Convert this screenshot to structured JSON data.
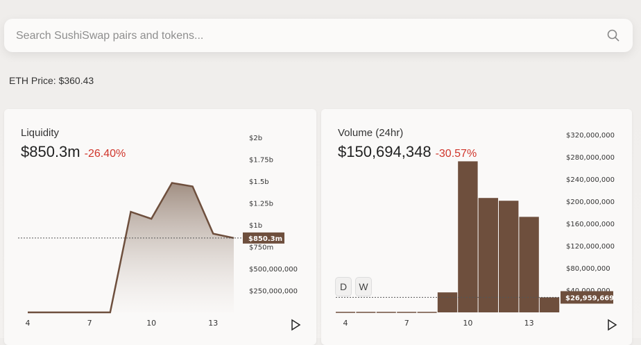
{
  "search": {
    "placeholder": "Search SushiSwap pairs and tokens..."
  },
  "eth_price": "ETH Price: $360.43",
  "liquidity": {
    "title": "Liquidity",
    "value": "$850.3m",
    "change": "-26.40%"
  },
  "volume": {
    "title": "Volume (24hr)",
    "value": "$150,694,348",
    "change": "-30.57%",
    "buttons": [
      "D",
      "W"
    ]
  },
  "colors": {
    "accent": "#6e4f3d",
    "negative": "#d0362c"
  },
  "chart_data": [
    {
      "type": "area",
      "title": "Liquidity",
      "x": [
        4,
        5,
        6,
        7,
        8,
        9,
        10,
        11,
        12,
        13,
        14
      ],
      "values": [
        0,
        0,
        0,
        0,
        0,
        1.15,
        1.07,
        1.48,
        1.44,
        0.9,
        0.85
      ],
      "unit": "billions USD",
      "xticks": [
        "4",
        "7",
        "10",
        "13"
      ],
      "yticks": [
        "$250,000,000",
        "$500,000,000",
        "$750m",
        "$1b",
        "$1.25b",
        "$1.5b",
        "$1.75b",
        "$2b"
      ],
      "ylim": [
        0,
        2
      ],
      "current_label": "$850.3m",
      "current": 0.8503
    },
    {
      "type": "bar",
      "title": "Volume (24hr)",
      "x": [
        4,
        5,
        6,
        7,
        8,
        9,
        10,
        11,
        12,
        13,
        14
      ],
      "values": [
        0,
        0,
        0,
        0,
        0,
        36,
        272,
        206,
        201,
        172,
        27
      ],
      "unit": "millions USD",
      "xticks": [
        "4",
        "7",
        "10",
        "13"
      ],
      "yticks": [
        "$40,000,000",
        "$80,000,000",
        "$120,000,000",
        "$160,000,000",
        "$200,000,000",
        "$240,000,000",
        "$280,000,000",
        "$320,000,000"
      ],
      "ylim": [
        0,
        320
      ],
      "current_label": "$26,959,669",
      "current": 26.96
    }
  ]
}
